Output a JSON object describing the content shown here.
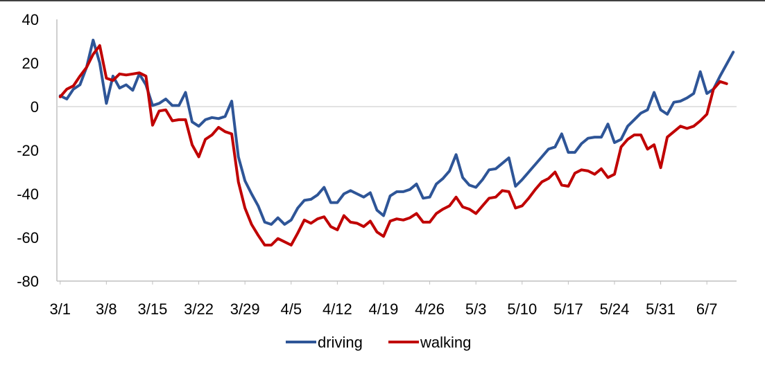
{
  "chart_data": {
    "type": "line",
    "title": "",
    "xlabel": "",
    "ylabel": "",
    "ylim": [
      -80,
      40
    ],
    "yticks": [
      40,
      20,
      0,
      -20,
      -40,
      -60,
      -80
    ],
    "x_tick_labels": [
      "3/1",
      "3/8",
      "3/15",
      "3/22",
      "3/29",
      "4/5",
      "4/12",
      "4/19",
      "4/26",
      "5/3",
      "5/10",
      "5/17",
      "5/24",
      "5/31",
      "6/7"
    ],
    "x_tick_interval_days": 7,
    "zero_line": true,
    "grid": false,
    "legend_position": "bottom",
    "series": [
      {
        "name": "driving",
        "color": "#2e5597",
        "values": [
          5,
          3.5,
          8,
          10,
          18,
          30.5,
          20,
          1.5,
          14,
          8.5,
          10,
          7.5,
          15,
          10,
          0.5,
          1.5,
          3.5,
          0.5,
          0.5,
          6.5,
          -7,
          -9,
          -6,
          -5,
          -5.5,
          -4.5,
          2.5,
          -23,
          -34,
          -40,
          -45.5,
          -53,
          -54,
          -51,
          -54,
          -52,
          -46.5,
          -43,
          -42.5,
          -40.5,
          -37,
          -44,
          -44,
          -40,
          -38.5,
          -40,
          -41.5,
          -39.5,
          -47.5,
          -50,
          -41,
          -39,
          -39,
          -38,
          -35.5,
          -42,
          -41.5,
          -35.5,
          -33,
          -29.5,
          -22,
          -32.5,
          -36,
          -37,
          -33.5,
          -29,
          -28.5,
          -26,
          -23.5,
          -36.5,
          -33.5,
          -30,
          -26.5,
          -23,
          -19.5,
          -18.5,
          -12.5,
          -21,
          -21,
          -17,
          -14.5,
          -14,
          -14,
          -8,
          -16.5,
          -15,
          -9,
          -6,
          -3,
          -1.5,
          6.5,
          -1.5,
          -3.5,
          2,
          2.5,
          4,
          6,
          16,
          6,
          8,
          14,
          19.5,
          25
        ]
      },
      {
        "name": "walking",
        "color": "#c00000",
        "values": [
          4.5,
          8,
          9.5,
          14,
          18,
          24,
          28,
          13,
          12,
          15,
          14.5,
          15,
          15.5,
          14,
          -8.5,
          -2,
          -1.5,
          -6.5,
          -6,
          -6,
          -17.5,
          -23,
          -15,
          -13,
          -9.5,
          -11.5,
          -12.5,
          -34.5,
          -46.5,
          -54,
          -59,
          -63.5,
          -63.5,
          -60.5,
          -62,
          -63.5,
          -58,
          -52,
          -53.5,
          -51.5,
          -50.5,
          -55,
          -56.5,
          -50,
          -53,
          -53.5,
          -55,
          -52.5,
          -57.5,
          -59.5,
          -52.5,
          -51.5,
          -52,
          -51,
          -49,
          -53,
          -53,
          -49,
          -47,
          -45.5,
          -41.5,
          -46,
          -47,
          -49,
          -45.5,
          -42,
          -41.5,
          -38.5,
          -39,
          -46.5,
          -45.5,
          -42,
          -38,
          -34.5,
          -33,
          -30,
          -36,
          -36.5,
          -30.5,
          -29,
          -29.5,
          -31,
          -28.5,
          -32.5,
          -31,
          -18.5,
          -15,
          -13,
          -13,
          -19.5,
          -17.5,
          -28,
          -14,
          -11.5,
          -9,
          -10,
          -9,
          -6.5,
          -3.5,
          8,
          11.5,
          10.5
        ]
      }
    ]
  }
}
